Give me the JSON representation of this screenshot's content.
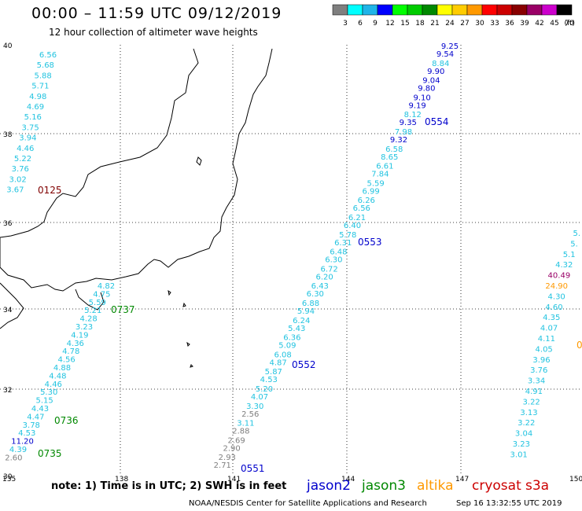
{
  "header": {
    "title": "00:00 – 11:59 UTC 09/12/2019",
    "subtitle": "12 hour collection of altimeter wave heights"
  },
  "colorbar": {
    "labels": [
      "3",
      "6",
      "9",
      "12",
      "15",
      "18",
      "21",
      "24",
      "27",
      "30",
      "33",
      "36",
      "39",
      "42",
      "45",
      "70"
    ],
    "unit": "(ft)",
    "colors": [
      "#7f7f7f",
      "#00ffff",
      "#1fb4e8",
      "#0000ff",
      "#00ff00",
      "#00cc00",
      "#008800",
      "#ffff00",
      "#ffcc00",
      "#ff9900",
      "#ff0000",
      "#cc0000",
      "#880000",
      "#990066",
      "#cc00cc",
      "#000000"
    ]
  },
  "axes": {
    "lat_labels": [
      "40",
      "38",
      "36",
      "34",
      "32",
      "30"
    ],
    "lon_labels": [
      "135",
      "138",
      "141",
      "144",
      "147",
      "150"
    ]
  },
  "tracks": {
    "west": {
      "color": "#22c3e0",
      "values": [
        "4.82",
        "4.75",
        "5.59",
        "5.21",
        "4.28",
        "3.23",
        "4.19",
        "4.36",
        "4.78",
        "4.56",
        "4.88",
        "4.48",
        "4.46",
        "5.30",
        "5.15",
        "4.43",
        "4.47",
        "3.78",
        "4.53",
        "11.20",
        "4.39",
        "2.60"
      ],
      "time_labels": [
        {
          "text": "0737",
          "color": "#008800"
        },
        {
          "text": "0736",
          "color": "#008800"
        },
        {
          "text": "0735",
          "color": "#008800"
        }
      ]
    },
    "northwest": {
      "color": "#22c3e0",
      "values": [
        "6.56",
        "5.68",
        "5.88",
        "5.71",
        "4.98",
        "4.69",
        "5.16",
        "3.75",
        "3.94",
        "4.46",
        "5.22",
        "3.76",
        "3.02",
        "3.67"
      ],
      "time_label": {
        "text": "0125",
        "color": "#800000"
      }
    },
    "main": {
      "values_a": [
        "9.25",
        "8.84",
        "9.04",
        "9.10",
        "8.12",
        "7.98",
        "6.58",
        "6.61",
        "5.59",
        "6.26",
        "6.21",
        "5.78",
        "6.48",
        "6.72",
        "6.43",
        "6.88",
        "6.24",
        "6.36",
        "6.08",
        "5.87",
        "5.20",
        "3.30",
        "3.11",
        "2.69",
        "2.93"
      ],
      "values_b": [
        "9.54",
        "9.90",
        "9.80",
        "9.19",
        "9.35",
        "9.32",
        "8.65",
        "7.84",
        "6.99",
        "6.56",
        "6.40",
        "6.31",
        "6.30",
        "6.20",
        "6.30",
        "5.94",
        "5.43",
        "5.09",
        "4.87",
        "4.53",
        "4.07",
        "2.56",
        "2.88",
        "2.90",
        "2.71"
      ],
      "time_labels": [
        {
          "text": "0554",
          "color": "#0000cc"
        },
        {
          "text": "0553",
          "color": "#0000cc"
        },
        {
          "text": "0552",
          "color": "#0000cc"
        },
        {
          "text": "0551",
          "color": "#0000cc"
        }
      ]
    },
    "east": {
      "values": [
        "5.",
        "5.",
        "5.1",
        "4.32",
        "40.49",
        "24.90",
        "4.30",
        "4.60",
        "4.35",
        "4.07",
        "4.11",
        "4.05",
        "3.96",
        "3.76",
        "3.34",
        "4.91",
        "3.22",
        "3.13",
        "3.22",
        "3.04",
        "3.23",
        "3.01"
      ],
      "edge_label": {
        "text": "0",
        "color": "#ff9900"
      }
    }
  },
  "footer": {
    "note": "note: 1) Time is in UTC; 2) SWH is in feet",
    "legend": [
      {
        "name": "jason2",
        "color": "#0000cc"
      },
      {
        "name": "jason3",
        "color": "#008800"
      },
      {
        "name": "altika",
        "color": "#ff9900"
      },
      {
        "name": "cryosat",
        "color": "#cc0000"
      },
      {
        "name": "s3a",
        "color": "#cc0000"
      }
    ],
    "credit": "NOAA/NESDIS Center for Satellite Applications and Research",
    "timestamp": "Sep 16 13:32:55 UTC 2019"
  }
}
